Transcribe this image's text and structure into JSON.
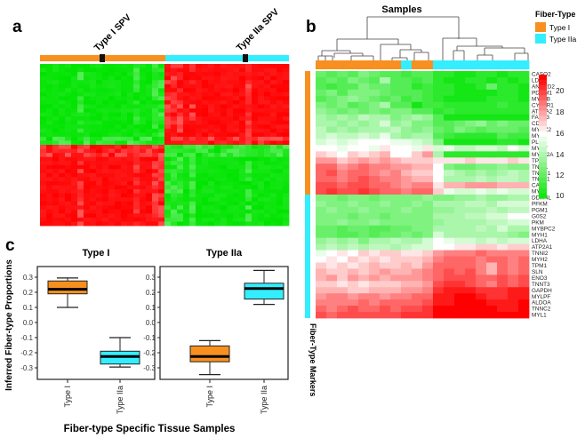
{
  "panels": {
    "a": "a",
    "b": "b",
    "c": "c"
  },
  "panel_a": {
    "labels": [
      "Type I SPV",
      "Type IIa SPV"
    ],
    "colors": {
      "type_i": "#f7901e",
      "type_iia": "#33eeff",
      "low": "#00e600",
      "mid": "#ffffff",
      "high": "#ff0000"
    }
  },
  "panel_b": {
    "title": "Samples",
    "legend_title": "Fiber-Type",
    "legend": [
      "Type I",
      "Type IIa"
    ],
    "row_annotation_label": "Fiber-Type Markers",
    "colorbar_ticks": [
      "20",
      "18",
      "16",
      "14",
      "12",
      "10"
    ]
  },
  "panel_c": {
    "titles": [
      "Type I",
      "Type IIa"
    ],
    "ylabel": "Inferred Fiber-type Proportions",
    "xlabel": "Fiber-type Specific Tissue Samples",
    "yticks": [
      "0.3",
      "0.2",
      "0.1",
      "0.0",
      "-0.1",
      "-0.2",
      "-0.3"
    ],
    "xticks": [
      "Type I",
      "Type IIa"
    ]
  },
  "chart_data": [
    {
      "type": "heatmap",
      "panel": "a",
      "column_groups": [
        {
          "name": "Type I SPV",
          "count": 20
        },
        {
          "name": "Type IIa SPV",
          "count": 20
        }
      ],
      "row_groups": 2,
      "block_values": [
        [
          -1,
          1
        ],
        [
          1,
          -1
        ]
      ],
      "color_scale": [
        "green",
        "white",
        "red"
      ]
    },
    {
      "type": "heatmap",
      "panel": "b",
      "title": "Samples",
      "column_types": [
        "Type I",
        "Type I",
        "Type I",
        "Type I",
        "Type I",
        "Type I",
        "Type I",
        "Type I",
        "Type IIa",
        "Type I",
        "Type I",
        "Type IIa",
        "Type IIa",
        "Type IIa",
        "Type IIa",
        "Type IIa",
        "Type IIa",
        "Type IIa",
        "Type IIa",
        "Type IIa"
      ],
      "row_types_split": {
        "Type I": 20,
        "Type IIa": 20
      },
      "color_range": [
        10,
        21
      ],
      "genes": [
        "CASQ2",
        "LDHB",
        "ANKRD2",
        "PDLIM1",
        "MYL6B",
        "CYB5R1",
        "ATP2A2",
        "FABP3",
        "CD36",
        "MYOZ2",
        "MYL3",
        "PLN",
        "MYH7",
        "MYL12A",
        "TPM3",
        "TNNI1",
        "TNNC1",
        "TNNT1",
        "CA3",
        "MYL2",
        "DDIT4L",
        "PFKM",
        "PGM1",
        "G0S2",
        "PKM",
        "MYBPC2",
        "MYH1",
        "LDHA",
        "ATP2A1",
        "TNNI2",
        "MYH2",
        "TPM1",
        "SLN",
        "ENO3",
        "TNNT3",
        "GAPDH",
        "MYLPF",
        "ALDOA",
        "TNNC2",
        "MYL1"
      ],
      "values": [
        [
          12.5,
          12,
          12.5,
          12,
          13,
          12.5,
          12,
          12,
          11.5,
          12,
          12,
          11,
          11,
          10.5,
          10.5,
          11,
          11,
          10.5,
          11,
          11
        ],
        [
          12,
          12.5,
          12,
          13,
          12.5,
          12,
          14,
          12,
          12,
          11.5,
          12,
          11,
          10.5,
          10.5,
          11,
          11,
          10.5,
          11,
          10.5,
          11
        ],
        [
          12,
          11.5,
          12,
          12,
          13,
          12.5,
          12.5,
          12,
          12,
          11,
          11.5,
          11,
          11,
          10.5,
          10.5,
          11,
          12.5,
          11,
          11,
          10.5
        ],
        [
          12.5,
          13,
          12,
          13,
          13,
          13,
          12.5,
          12,
          12,
          12,
          11.5,
          11,
          11,
          10.5,
          10.5,
          10.5,
          10.5,
          11,
          11,
          10.5
        ],
        [
          12,
          12.5,
          13,
          13.5,
          13,
          12.5,
          12,
          12.5,
          11.5,
          12,
          11.5,
          11,
          10.5,
          10.5,
          10.5,
          10.5,
          11,
          11,
          11,
          10.5
        ],
        [
          13,
          12.5,
          13,
          12,
          12.5,
          13,
          14,
          12,
          12,
          10.5,
          11.5,
          11.5,
          11,
          11,
          11,
          11,
          11,
          11.5,
          11,
          11
        ],
        [
          13.5,
          13,
          12.5,
          13,
          12.5,
          13,
          12.5,
          13,
          13,
          12,
          12,
          11,
          11.5,
          11,
          11,
          11,
          11,
          11,
          11,
          11
        ],
        [
          14,
          13.5,
          14,
          13.5,
          14.5,
          14,
          14,
          13,
          13.5,
          14,
          13.5,
          12,
          10.5,
          10.5,
          10.5,
          10.5,
          10.5,
          10.5,
          10.5,
          10.5
        ],
        [
          14,
          14,
          13.5,
          14,
          13.5,
          14,
          15,
          13.5,
          14,
          13,
          13,
          12,
          12,
          12.5,
          13,
          13.5,
          12.5,
          13,
          12.5,
          12.5
        ],
        [
          14.5,
          13.5,
          14,
          13.5,
          14,
          14,
          14,
          14.5,
          13.5,
          13,
          13.5,
          12.5,
          12,
          13,
          12.5,
          12,
          12.5,
          12.5,
          12.5,
          12
        ],
        [
          14.5,
          15,
          14.5,
          14.5,
          15,
          14.5,
          15.5,
          14,
          13.5,
          14,
          14,
          12,
          11.5,
          11,
          11,
          11,
          11,
          12,
          11.5,
          11.5
        ],
        [
          15,
          15.5,
          15,
          15.5,
          16,
          16,
          16,
          15.5,
          15.5,
          15,
          14.5,
          13,
          10.5,
          10.5,
          10.5,
          10.5,
          10.5,
          11,
          11,
          10.5
        ],
        [
          16,
          16,
          15.5,
          16,
          16,
          15.5,
          16.5,
          16,
          16,
          15.5,
          16.5,
          15,
          15.5,
          14.5,
          14.5,
          15,
          15,
          14.5,
          16,
          15
        ],
        [
          17,
          16.5,
          16,
          17,
          16.5,
          17,
          17.5,
          16,
          16,
          17,
          18,
          14,
          11,
          11,
          11,
          11,
          11,
          11,
          11,
          11
        ],
        [
          18,
          18,
          17,
          17.5,
          18,
          17.5,
          18,
          17.5,
          17,
          17,
          17,
          16.5,
          16.5,
          16.5,
          17,
          16.5,
          16.5,
          16.5,
          17,
          16.5
        ],
        [
          19,
          19,
          18,
          18.5,
          19,
          18.5,
          18.5,
          18,
          18,
          17.5,
          17.5,
          16,
          13,
          12.5,
          12.5,
          13,
          13,
          13.5,
          13,
          13
        ],
        [
          19,
          19.5,
          18.5,
          19,
          19,
          18.5,
          18,
          18.5,
          17.5,
          17,
          17,
          16,
          14.5,
          14,
          13.5,
          14,
          13.5,
          14,
          14.5,
          14
        ],
        [
          19,
          19,
          18.5,
          19,
          19.5,
          19,
          18.5,
          18.5,
          18,
          17.5,
          17.5,
          16,
          14,
          14,
          14,
          14.5,
          14,
          14.5,
          14.5,
          14
        ],
        [
          19.5,
          19.5,
          19,
          19.5,
          19.5,
          19,
          19,
          18.5,
          18,
          18.5,
          18.5,
          16.5,
          17.5,
          17.5,
          18,
          18,
          18,
          17.5,
          17.5,
          17.5
        ],
        [
          19.5,
          20,
          19.5,
          19.5,
          20,
          19.5,
          19,
          19,
          18.5,
          19,
          19,
          17,
          15.5,
          15,
          15,
          15.5,
          15,
          15.5,
          15,
          15
        ],
        [
          13,
          13,
          12.5,
          13,
          13,
          12.5,
          13,
          13,
          13,
          13,
          13.5,
          13,
          13,
          13.5,
          13.5,
          14,
          13.5,
          13.5,
          14,
          14
        ],
        [
          13.5,
          13,
          13,
          13.5,
          13,
          13,
          13.5,
          13,
          13,
          13.5,
          13,
          14,
          14,
          14,
          14.5,
          14.5,
          14,
          15,
          15,
          15
        ],
        [
          13,
          13.5,
          13,
          13,
          13.5,
          13,
          13,
          13,
          13.5,
          13,
          13,
          13.5,
          13.5,
          14,
          14,
          14,
          14.5,
          14,
          14.5,
          14.5
        ],
        [
          13,
          13,
          13,
          12.5,
          13,
          13,
          12.5,
          13,
          13,
          13,
          13,
          14,
          14,
          14,
          14.5,
          14.5,
          15,
          15,
          16,
          16
        ],
        [
          13,
          13,
          13.5,
          13,
          13,
          13.5,
          13,
          13,
          13,
          13,
          13,
          13.5,
          14,
          14,
          14,
          14,
          14.5,
          14.5,
          15,
          15
        ],
        [
          12.5,
          12.5,
          12,
          12.5,
          12.5,
          12,
          12,
          12.5,
          12.5,
          13,
          13,
          14,
          14,
          14,
          14,
          14.5,
          14,
          15,
          14,
          14
        ],
        [
          12.5,
          12.5,
          12,
          12,
          12.5,
          12,
          12.5,
          12.5,
          13,
          12.5,
          13,
          15,
          14,
          14,
          14,
          14,
          14,
          14,
          13.5,
          13
        ],
        [
          13.5,
          14,
          13.5,
          14,
          13,
          14,
          14,
          14.5,
          14,
          14,
          15,
          16,
          15.5,
          15,
          15,
          14.5,
          15,
          14.5,
          15,
          15
        ],
        [
          14,
          14.5,
          14,
          14.5,
          14,
          14.5,
          14.5,
          14,
          14.5,
          15,
          15,
          16,
          16,
          16.5,
          16.5,
          17,
          17,
          16.5,
          17,
          17
        ],
        [
          15.5,
          16,
          16.5,
          16,
          17,
          16.5,
          17,
          17,
          16.5,
          16.5,
          17,
          18,
          18.5,
          18.5,
          18.5,
          19,
          18.5,
          18.5,
          18.5,
          18.5
        ],
        [
          16,
          16.5,
          16,
          17,
          16.5,
          17,
          16.5,
          17,
          17,
          17,
          17.5,
          18.5,
          19,
          19,
          19,
          18.5,
          19,
          19,
          18.5,
          19
        ],
        [
          17,
          16.5,
          17,
          16.5,
          17,
          17.5,
          17,
          17,
          17.5,
          17,
          18,
          19,
          19,
          19,
          19,
          18.5,
          17.5,
          19,
          18.5,
          19
        ],
        [
          17.5,
          17,
          17,
          17.5,
          17,
          17.5,
          18,
          17.5,
          17.5,
          18,
          18.5,
          19,
          19.5,
          19,
          19.5,
          18.5,
          17.5,
          19,
          18.5,
          19
        ],
        [
          17.5,
          18,
          17,
          18,
          17.5,
          18,
          17.5,
          18,
          18,
          18,
          18.5,
          19,
          19.5,
          19.5,
          19.5,
          19,
          19,
          19.5,
          19,
          19.5
        ],
        [
          17,
          17,
          16.5,
          17,
          16.5,
          17,
          17,
          17,
          17.5,
          17.5,
          18,
          19.5,
          20,
          20,
          19.5,
          19,
          18.5,
          19.5,
          19,
          19.5
        ],
        [
          17.5,
          17.5,
          17.5,
          17,
          17,
          17.5,
          17.5,
          17.5,
          18,
          18,
          18.5,
          20,
          20.5,
          20.5,
          20.5,
          20,
          20,
          20,
          20.5,
          20.5
        ],
        [
          18,
          18.5,
          18.5,
          18,
          18.5,
          18.5,
          18,
          18.5,
          18.5,
          19,
          19,
          20.5,
          20.5,
          21,
          21,
          20.5,
          20,
          20,
          20.5,
          20.5
        ],
        [
          18.5,
          18.5,
          18.5,
          18.5,
          19,
          18.5,
          19,
          19,
          19,
          19,
          19.5,
          20.5,
          20.5,
          21,
          21,
          21,
          20.5,
          20.5,
          20.5,
          21
        ],
        [
          19,
          18.5,
          19,
          19.5,
          19,
          19,
          19.5,
          19,
          19.5,
          19.5,
          20,
          21,
          21,
          21,
          21,
          21,
          21,
          20.5,
          20.5,
          21
        ],
        [
          19.5,
          19,
          19.5,
          19.5,
          19.5,
          19.5,
          19.5,
          19.5,
          20,
          20,
          20,
          21,
          21,
          21,
          21.5,
          21.5,
          21.5,
          21,
          21,
          21.5
        ]
      ]
    },
    {
      "type": "box",
      "panel": "c",
      "ylabel": "Inferred Fiber-type Proportions",
      "xlabel": "Fiber-type Specific Tissue Samples",
      "ylim": [
        -0.37,
        0.37
      ],
      "facets": [
        {
          "title": "Type I",
          "boxes": [
            {
              "category": "Type I",
              "min": 0.1,
              "q1": 0.19,
              "median": 0.22,
              "q3": 0.275,
              "max": 0.295
            },
            {
              "category": "Type IIa",
              "min": -0.295,
              "q1": -0.275,
              "median": -0.225,
              "q3": -0.19,
              "max": -0.1
            }
          ]
        },
        {
          "title": "Type IIa",
          "boxes": [
            {
              "category": "Type I",
              "min": -0.345,
              "q1": -0.26,
              "median": -0.225,
              "q3": -0.155,
              "max": -0.12
            },
            {
              "category": "Type IIa",
              "min": 0.12,
              "q1": 0.155,
              "median": 0.225,
              "q3": 0.26,
              "max": 0.345
            }
          ]
        }
      ]
    }
  ]
}
